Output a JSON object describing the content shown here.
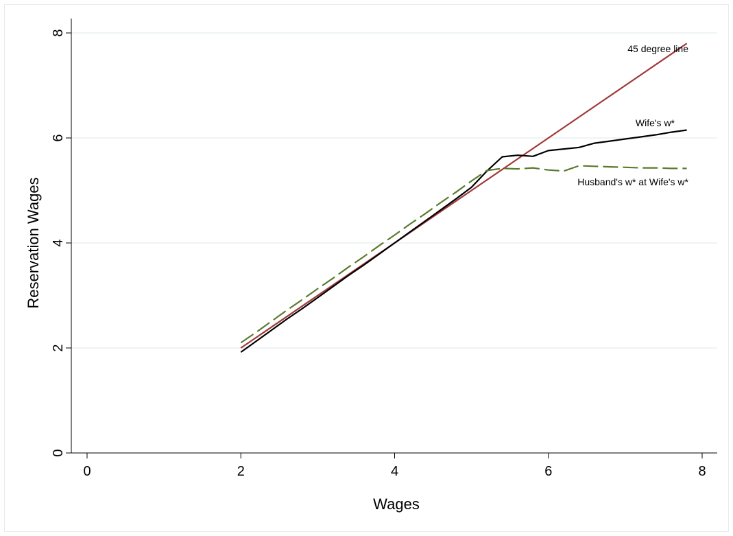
{
  "chart_data": {
    "type": "line",
    "title": "",
    "xlabel": "Wages",
    "ylabel": "Reservation Wages",
    "xlim": [
      0,
      8
    ],
    "ylim": [
      0,
      8
    ],
    "xticks": [
      0,
      2,
      4,
      6,
      8
    ],
    "yticks": [
      0,
      2,
      4,
      6,
      8
    ],
    "grid": "horizontal",
    "legend": "none",
    "series": [
      {
        "label": "45 degree line",
        "color": "#a0383a",
        "style": "solid",
        "x": [
          2.0,
          7.8
        ],
        "y": [
          2.0,
          7.8
        ]
      },
      {
        "label": "Wife's w*",
        "color": "#000000",
        "style": "solid",
        "x": [
          2.0,
          2.2,
          2.4,
          2.6,
          2.8,
          3.0,
          3.2,
          3.4,
          3.6,
          3.8,
          4.0,
          4.2,
          4.4,
          4.6,
          4.8,
          5.0,
          5.2,
          5.4,
          5.6,
          5.8,
          6.0,
          6.2,
          6.4,
          6.6,
          6.8,
          7.0,
          7.2,
          7.4,
          7.6,
          7.8
        ],
        "y": [
          1.92,
          2.13,
          2.34,
          2.55,
          2.75,
          2.96,
          3.17,
          3.38,
          3.58,
          3.79,
          4.0,
          4.21,
          4.42,
          4.63,
          4.84,
          5.06,
          5.37,
          5.64,
          5.67,
          5.65,
          5.76,
          5.79,
          5.82,
          5.9,
          5.94,
          5.98,
          6.02,
          6.06,
          6.11,
          6.15
        ]
      },
      {
        "label": "Husband's w* at Wife's w*",
        "color": "#5a7a2c",
        "style": "dashed",
        "x": [
          2.0,
          2.2,
          2.4,
          2.6,
          2.8,
          3.0,
          3.2,
          3.4,
          3.6,
          3.8,
          4.0,
          4.2,
          4.4,
          4.6,
          4.8,
          5.0,
          5.2,
          5.4,
          5.6,
          5.8,
          6.0,
          6.2,
          6.4,
          6.6,
          6.8,
          7.0,
          7.2,
          7.4,
          7.6,
          7.8
        ],
        "y": [
          2.1,
          2.3,
          2.51,
          2.72,
          2.92,
          3.13,
          3.33,
          3.54,
          3.74,
          3.95,
          4.15,
          4.36,
          4.56,
          4.77,
          4.97,
          5.18,
          5.38,
          5.42,
          5.41,
          5.43,
          5.39,
          5.37,
          5.47,
          5.46,
          5.45,
          5.44,
          5.43,
          5.43,
          5.42,
          5.42
        ]
      }
    ],
    "annotations": [
      {
        "text": "45 degree line"
      },
      {
        "text": "Wife's w*"
      },
      {
        "text": "Husband's w* at Wife's w*"
      }
    ]
  }
}
